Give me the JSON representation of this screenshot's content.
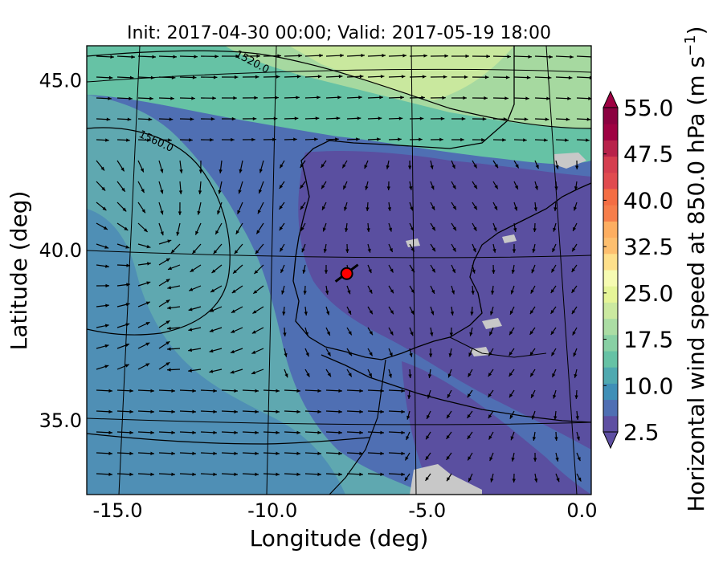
{
  "chart_data": {
    "type": "heatmap",
    "title": "Init: 2017-04-30 00:00; Valid: 2017-05-19 18:00",
    "xlabel": "Longitude (deg)",
    "ylabel": "Latitude (deg)",
    "xlim": [
      -16.0,
      0.3
    ],
    "ylim": [
      32.8,
      46.0
    ],
    "xticks": [
      -15.0,
      -10.0,
      -5.0,
      0.0
    ],
    "xtick_labels": [
      "-15.0",
      "-10.0",
      "-5.0",
      "0.0"
    ],
    "yticks": [
      35.0,
      40.0,
      45.0
    ],
    "ytick_labels": [
      "35.0",
      "40.0",
      "45.0"
    ],
    "colorbar": {
      "label": "Horizontal wind speed at 850.0 hPa (m s",
      "label_superscript": "−1",
      "label_close": ")",
      "range": [
        2.5,
        55.0
      ],
      "ticks": [
        "2.5",
        "10.0",
        "17.5",
        "25.0",
        "32.5",
        "40.0",
        "47.5",
        "55.0"
      ],
      "colormap": "Spectral_r",
      "extend": "both"
    },
    "contours": [
      {
        "label": "1520.0"
      },
      {
        "label": "1560.0"
      }
    ],
    "marker": {
      "lon": -7.6,
      "lat": 39.3,
      "color": "#ff0000"
    },
    "wind_field": "vectors shown as arrows (quiver)",
    "grid": true
  }
}
